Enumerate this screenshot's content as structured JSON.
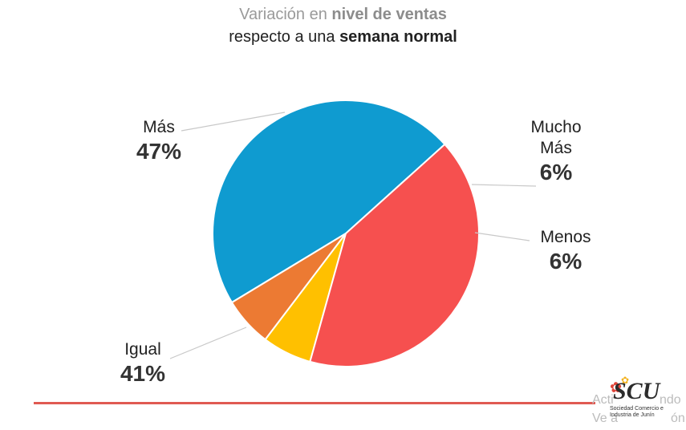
{
  "header": {
    "line1_prefix": "Variación en ",
    "line1_bold": "nivel de ventas",
    "line2_prefix": "respecto a una ",
    "line2_bold": "semana normal"
  },
  "chart_data": {
    "type": "pie",
    "title": "Variación en nivel de ventas respecto a una semana normal",
    "slices": [
      {
        "label": "Más",
        "value": 47,
        "display": "47%",
        "color": "#0f9bd0"
      },
      {
        "label": "Mucho Más",
        "value": 6,
        "display": "6%",
        "color": "#ec7a33"
      },
      {
        "label": "Menos",
        "value": 6,
        "display": "6%",
        "color": "#ffc000"
      },
      {
        "label": "Igual",
        "value": 41,
        "display": "41%",
        "color": "#f6504f"
      }
    ],
    "label_lines": {
      "mucho_mas_1": "Mucho",
      "mucho_mas_2": "Más"
    }
  },
  "footer": {
    "logo_text": "SCU",
    "logo_subtitle": "Sociedad Comercio e Industria de Junín",
    "ghost_text_1": "Acti",
    "ghost_text_2": "ndo",
    "ghost_text_3": "Ve a",
    "ghost_text_4": "ón"
  }
}
